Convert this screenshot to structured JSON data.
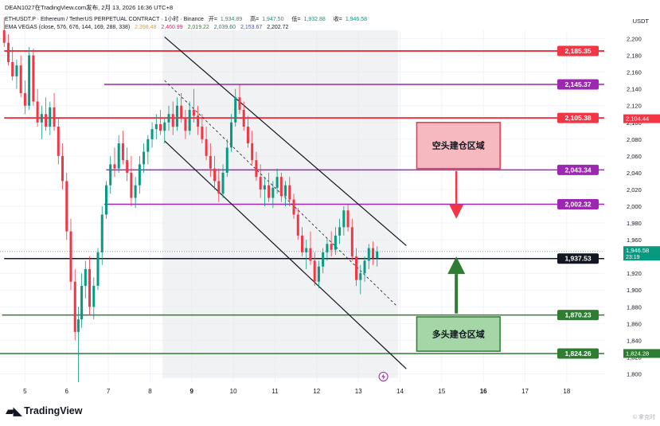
{
  "header": {
    "line1": "DEAN1027在TradingView.com发布, 2月 13, 2026 16:36 UTC+8",
    "symbol": "ETHUSDT.P · Ethereum / TetherUS PERPETUAL CONTRACT · 1小时 · Binance",
    "ohlc": [
      {
        "label": "开=",
        "value": "1,934.89"
      },
      {
        "label": "高=",
        "value": "1,947.50"
      },
      {
        "label": "低=",
        "value": "1,932.88"
      },
      {
        "label": "收=",
        "value": "1,946.58"
      }
    ],
    "indicator": "EMA VEGAS (close, 576, 676, 144, 169, 288, 338)",
    "indicator_values": [
      "2,398.48",
      "2,460.99",
      "2,019.22",
      "2,039.60",
      "2,153.67",
      "2,202.72"
    ]
  },
  "currency": "USDT",
  "brand": "TradingView",
  "watermark": "© 拿克时",
  "chart_data": {
    "type": "candlestick",
    "ylim": [
      1790,
      2210
    ],
    "y_ticks": [
      1800,
      1820,
      1840,
      1860,
      1880,
      1900,
      1920,
      1940,
      1960,
      1980,
      2000,
      2020,
      2040,
      2060,
      2080,
      2100,
      2120,
      2140,
      2160,
      2180,
      2200
    ],
    "x_ticks": [
      {
        "label": "5",
        "day": 5,
        "bold": false
      },
      {
        "label": "6",
        "day": 6,
        "bold": false
      },
      {
        "label": "7",
        "day": 7,
        "bold": false
      },
      {
        "label": "8",
        "day": 8,
        "bold": false
      },
      {
        "label": "9",
        "day": 9,
        "bold": true
      },
      {
        "label": "10",
        "day": 10,
        "bold": false
      },
      {
        "label": "11",
        "day": 11,
        "bold": false
      },
      {
        "label": "12",
        "day": 12,
        "bold": false
      },
      {
        "label": "13",
        "day": 13,
        "bold": false
      },
      {
        "label": "14",
        "day": 14,
        "bold": false
      },
      {
        "label": "15",
        "day": 15,
        "bold": false
      },
      {
        "label": "16",
        "day": 16,
        "bold": true
      },
      {
        "label": "17",
        "day": 17,
        "bold": false
      },
      {
        "label": "18",
        "day": 18,
        "bold": false
      }
    ],
    "levels": [
      {
        "value": 2185.35,
        "label": "2,185.35",
        "color": "#f23645",
        "x_start_day": 4.5,
        "width": 2
      },
      {
        "value": 2145.37,
        "label": "2,145.37",
        "color": "#9c27b0",
        "x_start_day": 6.9,
        "width": 1.5
      },
      {
        "value": 2105.38,
        "label": "2,105.38",
        "color": "#f23645",
        "x_start_day": 4.5,
        "width": 2
      },
      {
        "value": 2043.34,
        "label": "2,043.34",
        "color": "#9c27b0",
        "x_start_day": 6.95,
        "width": 1.5
      },
      {
        "value": 2002.32,
        "label": "2,002.32",
        "color": "#9c27b0",
        "x_start_day": 6.9,
        "width": 1.5
      },
      {
        "value": 1937.53,
        "label": "1,937.53",
        "color": "#131722",
        "x_start_day": 4.5,
        "width": 1.5
      },
      {
        "value": 1870.23,
        "label": "1,870.23",
        "color": "#2e7d32",
        "x_start_day": 4.45,
        "width": 1.5
      },
      {
        "value": 1824.26,
        "label": "1,824.26",
        "color": "#2e7d32",
        "x_start_day": 4.3,
        "width": 1.5
      }
    ],
    "axis_badges": [
      {
        "value": 2104.44,
        "label": "2,104.44",
        "color": "#f23645"
      },
      {
        "value": 1946.58,
        "label": "1,946.58",
        "sub": "23:19",
        "color": "#089981"
      },
      {
        "value": 1824.28,
        "label": "1,824.28",
        "color": "#2e7d32"
      }
    ],
    "zones": [
      {
        "label": "空头建仓区域",
        "from_day": 14.4,
        "to_day": 16.4,
        "top": 2100,
        "bottom": 2045,
        "fill": "#f7b9c0",
        "stroke": "#f23645"
      },
      {
        "label": "多头建仓区域",
        "from_day": 14.4,
        "to_day": 16.4,
        "top": 1868,
        "bottom": 1827,
        "fill": "#a5d6a7",
        "stroke": "#2e7d32"
      }
    ],
    "arrows": [
      {
        "from_value": 2042,
        "to_value": 1985,
        "day": 15.35,
        "color": "#f23645",
        "direction": "down"
      },
      {
        "from_value": 1872,
        "to_value": 1940,
        "day": 15.35,
        "color": "#2e7d32",
        "direction": "up"
      }
    ],
    "channel": {
      "upper": {
        "from": [
          8.35,
          2202
        ],
        "to": [
          14.15,
          1953
        ]
      },
      "lower": {
        "from": [
          8.35,
          2078
        ],
        "to": [
          14.15,
          1806
        ]
      },
      "mid": {
        "from": [
          8.35,
          2150
        ],
        "to": [
          13.9,
          1882
        ]
      },
      "shade_from_day": 8.3,
      "shade_to_day": 13.95,
      "shade_top": 2210,
      "shade_bottom": 1795
    },
    "candles": [
      {
        "t": 4.5,
        "o": 2210,
        "h": 2225,
        "l": 2190,
        "c": 2195
      },
      {
        "t": 4.6,
        "o": 2195,
        "h": 2205,
        "l": 2168,
        "c": 2172
      },
      {
        "t": 4.7,
        "o": 2172,
        "h": 2190,
        "l": 2150,
        "c": 2155
      },
      {
        "t": 4.8,
        "o": 2155,
        "h": 2175,
        "l": 2140,
        "c": 2168
      },
      {
        "t": 4.9,
        "o": 2168,
        "h": 2180,
        "l": 2130,
        "c": 2135
      },
      {
        "t": 5.0,
        "o": 2135,
        "h": 2150,
        "l": 2110,
        "c": 2120
      },
      {
        "t": 5.1,
        "o": 2120,
        "h": 2190,
        "l": 2115,
        "c": 2180
      },
      {
        "t": 5.2,
        "o": 2180,
        "h": 2188,
        "l": 2120,
        "c": 2125
      },
      {
        "t": 5.3,
        "o": 2125,
        "h": 2140,
        "l": 2095,
        "c": 2100
      },
      {
        "t": 5.4,
        "o": 2100,
        "h": 2120,
        "l": 2080,
        "c": 2110
      },
      {
        "t": 5.5,
        "o": 2110,
        "h": 2130,
        "l": 2090,
        "c": 2095
      },
      {
        "t": 5.6,
        "o": 2095,
        "h": 2125,
        "l": 2085,
        "c": 2118
      },
      {
        "t": 5.7,
        "o": 2118,
        "h": 2135,
        "l": 2090,
        "c": 2095
      },
      {
        "t": 5.8,
        "o": 2095,
        "h": 2105,
        "l": 2050,
        "c": 2060
      },
      {
        "t": 5.9,
        "o": 2060,
        "h": 2075,
        "l": 2020,
        "c": 2030
      },
      {
        "t": 6.0,
        "o": 2030,
        "h": 2040,
        "l": 1960,
        "c": 1970
      },
      {
        "t": 6.1,
        "o": 1970,
        "h": 1985,
        "l": 1900,
        "c": 1910
      },
      {
        "t": 6.2,
        "o": 1910,
        "h": 1925,
        "l": 1840,
        "c": 1850
      },
      {
        "t": 6.28,
        "o": 1850,
        "h": 1880,
        "l": 1790,
        "c": 1865
      },
      {
        "t": 6.36,
        "o": 1865,
        "h": 1920,
        "l": 1855,
        "c": 1905
      },
      {
        "t": 6.45,
        "o": 1905,
        "h": 1935,
        "l": 1890,
        "c": 1925
      },
      {
        "t": 6.55,
        "o": 1925,
        "h": 1940,
        "l": 1870,
        "c": 1880
      },
      {
        "t": 6.65,
        "o": 1880,
        "h": 1915,
        "l": 1865,
        "c": 1905
      },
      {
        "t": 6.75,
        "o": 1905,
        "h": 1950,
        "l": 1900,
        "c": 1945
      },
      {
        "t": 6.85,
        "o": 1945,
        "h": 2000,
        "l": 1930,
        "c": 1990
      },
      {
        "t": 6.95,
        "o": 1990,
        "h": 2030,
        "l": 1985,
        "c": 2025
      },
      {
        "t": 7.05,
        "o": 2025,
        "h": 2060,
        "l": 2015,
        "c": 2050
      },
      {
        "t": 7.15,
        "o": 2050,
        "h": 2070,
        "l": 2035,
        "c": 2045
      },
      {
        "t": 7.25,
        "o": 2045,
        "h": 2085,
        "l": 2040,
        "c": 2075
      },
      {
        "t": 7.35,
        "o": 2075,
        "h": 2090,
        "l": 2050,
        "c": 2055
      },
      {
        "t": 7.45,
        "o": 2055,
        "h": 2070,
        "l": 2030,
        "c": 2040
      },
      {
        "t": 7.55,
        "o": 2040,
        "h": 2060,
        "l": 2000,
        "c": 2010
      },
      {
        "t": 7.65,
        "o": 2010,
        "h": 2035,
        "l": 1998,
        "c": 2025
      },
      {
        "t": 7.75,
        "o": 2025,
        "h": 2060,
        "l": 2015,
        "c": 2050
      },
      {
        "t": 7.85,
        "o": 2050,
        "h": 2075,
        "l": 2040,
        "c": 2065
      },
      {
        "t": 7.95,
        "o": 2065,
        "h": 2085,
        "l": 2050,
        "c": 2080
      },
      {
        "t": 8.05,
        "o": 2080,
        "h": 2100,
        "l": 2070,
        "c": 2092
      },
      {
        "t": 8.15,
        "o": 2092,
        "h": 2110,
        "l": 2080,
        "c": 2098
      },
      {
        "t": 8.25,
        "o": 2098,
        "h": 2115,
        "l": 2085,
        "c": 2090
      },
      {
        "t": 8.35,
        "o": 2090,
        "h": 2105,
        "l": 2075,
        "c": 2100
      },
      {
        "t": 8.45,
        "o": 2100,
        "h": 2120,
        "l": 2090,
        "c": 2110
      },
      {
        "t": 8.55,
        "o": 2110,
        "h": 2125,
        "l": 2085,
        "c": 2095
      },
      {
        "t": 8.65,
        "o": 2095,
        "h": 2130,
        "l": 2090,
        "c": 2120
      },
      {
        "t": 8.75,
        "o": 2120,
        "h": 2135,
        "l": 2100,
        "c": 2105
      },
      {
        "t": 8.85,
        "o": 2105,
        "h": 2115,
        "l": 2080,
        "c": 2090
      },
      {
        "t": 8.95,
        "o": 2090,
        "h": 2125,
        "l": 2085,
        "c": 2115
      },
      {
        "t": 9.05,
        "o": 2115,
        "h": 2140,
        "l": 2100,
        "c": 2108
      },
      {
        "t": 9.15,
        "o": 2108,
        "h": 2120,
        "l": 2085,
        "c": 2095
      },
      {
        "t": 9.25,
        "o": 2095,
        "h": 2110,
        "l": 2075,
        "c": 2080
      },
      {
        "t": 9.35,
        "o": 2080,
        "h": 2095,
        "l": 2055,
        "c": 2060
      },
      {
        "t": 9.45,
        "o": 2060,
        "h": 2075,
        "l": 2035,
        "c": 2045
      },
      {
        "t": 9.55,
        "o": 2045,
        "h": 2060,
        "l": 2020,
        "c": 2030
      },
      {
        "t": 9.65,
        "o": 2030,
        "h": 2045,
        "l": 2005,
        "c": 2015
      },
      {
        "t": 9.75,
        "o": 2015,
        "h": 2050,
        "l": 2010,
        "c": 2040
      },
      {
        "t": 9.85,
        "o": 2040,
        "h": 2080,
        "l": 2035,
        "c": 2070
      },
      {
        "t": 9.95,
        "o": 2070,
        "h": 2110,
        "l": 2065,
        "c": 2100
      },
      {
        "t": 10.05,
        "o": 2100,
        "h": 2140,
        "l": 2095,
        "c": 2130
      },
      {
        "t": 10.15,
        "o": 2130,
        "h": 2145,
        "l": 2110,
        "c": 2115
      },
      {
        "t": 10.25,
        "o": 2115,
        "h": 2125,
        "l": 2090,
        "c": 2095
      },
      {
        "t": 10.35,
        "o": 2095,
        "h": 2108,
        "l": 2070,
        "c": 2075
      },
      {
        "t": 10.45,
        "o": 2075,
        "h": 2090,
        "l": 2050,
        "c": 2055
      },
      {
        "t": 10.55,
        "o": 2055,
        "h": 2065,
        "l": 2030,
        "c": 2035
      },
      {
        "t": 10.65,
        "o": 2035,
        "h": 2050,
        "l": 2010,
        "c": 2020
      },
      {
        "t": 10.75,
        "o": 2020,
        "h": 2035,
        "l": 2000,
        "c": 2025
      },
      {
        "t": 10.85,
        "o": 2025,
        "h": 2040,
        "l": 2005,
        "c": 2010
      },
      {
        "t": 10.95,
        "o": 2010,
        "h": 2030,
        "l": 1998,
        "c": 2022
      },
      {
        "t": 11.05,
        "o": 2022,
        "h": 2045,
        "l": 2015,
        "c": 2035
      },
      {
        "t": 11.15,
        "o": 2035,
        "h": 2040,
        "l": 2005,
        "c": 2012
      },
      {
        "t": 11.25,
        "o": 2012,
        "h": 2030,
        "l": 2000,
        "c": 2025
      },
      {
        "t": 11.35,
        "o": 2025,
        "h": 2035,
        "l": 2000,
        "c": 2008
      },
      {
        "t": 11.45,
        "o": 2008,
        "h": 2015,
        "l": 1985,
        "c": 1990
      },
      {
        "t": 11.55,
        "o": 1990,
        "h": 1998,
        "l": 1960,
        "c": 1965
      },
      {
        "t": 11.65,
        "o": 1965,
        "h": 1975,
        "l": 1940,
        "c": 1945
      },
      {
        "t": 11.75,
        "o": 1945,
        "h": 1960,
        "l": 1925,
        "c": 1950
      },
      {
        "t": 11.85,
        "o": 1950,
        "h": 1970,
        "l": 1930,
        "c": 1935
      },
      {
        "t": 11.95,
        "o": 1935,
        "h": 1945,
        "l": 1905,
        "c": 1910
      },
      {
        "t": 12.05,
        "o": 1910,
        "h": 1935,
        "l": 1902,
        "c": 1928
      },
      {
        "t": 12.15,
        "o": 1928,
        "h": 1950,
        "l": 1920,
        "c": 1945
      },
      {
        "t": 12.25,
        "o": 1945,
        "h": 1962,
        "l": 1935,
        "c": 1955
      },
      {
        "t": 12.35,
        "o": 1955,
        "h": 1970,
        "l": 1940,
        "c": 1948
      },
      {
        "t": 12.45,
        "o": 1948,
        "h": 1975,
        "l": 1942,
        "c": 1965
      },
      {
        "t": 12.55,
        "o": 1965,
        "h": 1985,
        "l": 1955,
        "c": 1975
      },
      {
        "t": 12.65,
        "o": 1975,
        "h": 2000,
        "l": 1965,
        "c": 1995
      },
      {
        "t": 12.75,
        "o": 1995,
        "h": 2002,
        "l": 1970,
        "c": 1975
      },
      {
        "t": 12.85,
        "o": 1975,
        "h": 1985,
        "l": 1935,
        "c": 1940
      },
      {
        "t": 12.95,
        "o": 1940,
        "h": 1950,
        "l": 1905,
        "c": 1912
      },
      {
        "t": 13.05,
        "o": 1912,
        "h": 1930,
        "l": 1895,
        "c": 1920
      },
      {
        "t": 13.15,
        "o": 1920,
        "h": 1940,
        "l": 1910,
        "c": 1935
      },
      {
        "t": 13.25,
        "o": 1935,
        "h": 1955,
        "l": 1925,
        "c": 1950
      },
      {
        "t": 13.35,
        "o": 1950,
        "h": 1958,
        "l": 1930,
        "c": 1938
      },
      {
        "t": 13.45,
        "o": 1938,
        "h": 1952,
        "l": 1928,
        "c": 1946
      }
    ]
  }
}
